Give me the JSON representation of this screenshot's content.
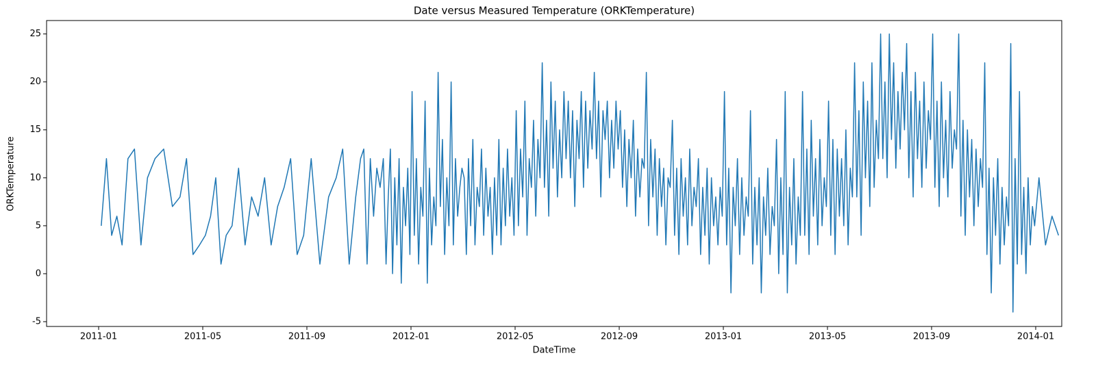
{
  "chart_data": {
    "type": "line",
    "title": "Date versus Measured Temperature (ORKTemperature)",
    "x_label": "DateTime",
    "y_label": "ORKTemperature",
    "xlim": [
      "2010-11",
      "2014-02"
    ],
    "xticks": [
      "2011-01",
      "2011-05",
      "2011-09",
      "2012-01",
      "2012-05",
      "2012-09",
      "2013-01",
      "2013-05",
      "2013-09",
      "2014-01"
    ],
    "ylim": [
      -5.5,
      26.4
    ],
    "yticks": [
      -5,
      0,
      5,
      10,
      15,
      20,
      25
    ],
    "grid": false,
    "series": [
      {
        "name": "ORKTemperature",
        "color": "#1f77b4",
        "x": [
          "2011-01",
          "2011-01",
          "2011-01",
          "2011-01",
          "2011-01",
          "2011-02",
          "2011-02",
          "2011-02",
          "2011-02",
          "2011-03",
          "2011-03",
          "2011-03",
          "2011-04",
          "2011-04",
          "2011-04",
          "2011-04",
          "2011-05",
          "2011-05",
          "2011-05",
          "2011-05",
          "2011-05",
          "2011-06",
          "2011-06",
          "2011-06",
          "2011-06",
          "2011-07",
          "2011-07",
          "2011-07",
          "2011-07",
          "2011-08",
          "2011-08",
          "2011-08",
          "2011-08",
          "2011-09",
          "2011-09",
          "2011-09",
          "2011-10",
          "2011-10",
          "2011-10",
          "2011-10",
          "2011-11",
          "2011-11",
          "2011-11",
          "2011-11",
          "2011-11",
          "2011-11",
          "2011-11",
          "2011-11",
          "2011-12",
          "2011-12",
          "2011-12",
          "2011-12",
          "2011-12",
          "2011-12",
          "2011-12",
          "2011-12",
          "2011-12",
          "2011-12",
          "2011-12",
          "2011-12",
          "2012-01",
          "2012-01",
          "2012-01",
          "2012-01",
          "2012-01",
          "2012-01",
          "2012-01",
          "2012-01",
          "2012-01",
          "2012-01",
          "2012-01",
          "2012-01",
          "2012-02",
          "2012-02",
          "2012-02",
          "2012-02",
          "2012-02",
          "2012-02",
          "2012-02",
          "2012-02",
          "2012-02",
          "2012-02",
          "2012-02",
          "2012-02",
          "2012-03",
          "2012-03",
          "2012-03",
          "2012-03",
          "2012-03",
          "2012-03",
          "2012-03",
          "2012-03",
          "2012-03",
          "2012-03",
          "2012-03",
          "2012-03",
          "2012-04",
          "2012-04",
          "2012-04",
          "2012-04",
          "2012-04",
          "2012-04",
          "2012-04",
          "2012-04",
          "2012-04",
          "2012-04",
          "2012-04",
          "2012-04",
          "2012-05",
          "2012-05",
          "2012-05",
          "2012-05",
          "2012-05",
          "2012-05",
          "2012-05",
          "2012-05",
          "2012-05",
          "2012-05",
          "2012-05",
          "2012-05",
          "2012-06",
          "2012-06",
          "2012-06",
          "2012-06",
          "2012-06",
          "2012-06",
          "2012-06",
          "2012-06",
          "2012-06",
          "2012-06",
          "2012-06",
          "2012-06",
          "2012-07",
          "2012-07",
          "2012-07",
          "2012-07",
          "2012-07",
          "2012-07",
          "2012-07",
          "2012-07",
          "2012-07",
          "2012-07",
          "2012-07",
          "2012-07",
          "2012-08",
          "2012-08",
          "2012-08",
          "2012-08",
          "2012-08",
          "2012-08",
          "2012-08",
          "2012-08",
          "2012-08",
          "2012-08",
          "2012-08",
          "2012-08",
          "2012-09",
          "2012-09",
          "2012-09",
          "2012-09",
          "2012-09",
          "2012-09",
          "2012-09",
          "2012-09",
          "2012-09",
          "2012-09",
          "2012-09",
          "2012-09",
          "2012-10",
          "2012-10",
          "2012-10",
          "2012-10",
          "2012-10",
          "2012-10",
          "2012-10",
          "2012-10",
          "2012-10",
          "2012-10",
          "2012-10",
          "2012-10",
          "2012-11",
          "2012-11",
          "2012-11",
          "2012-11",
          "2012-11",
          "2012-11",
          "2012-11",
          "2012-11",
          "2012-11",
          "2012-11",
          "2012-11",
          "2012-11",
          "2012-12",
          "2012-12",
          "2012-12",
          "2012-12",
          "2012-12",
          "2012-12",
          "2012-12",
          "2012-12",
          "2012-12",
          "2012-12",
          "2012-12",
          "2012-12",
          "2013-01",
          "2013-01",
          "2013-01",
          "2013-01",
          "2013-01",
          "2013-01",
          "2013-01",
          "2013-01",
          "2013-01",
          "2013-01",
          "2013-01",
          "2013-01",
          "2013-02",
          "2013-02",
          "2013-02",
          "2013-02",
          "2013-02",
          "2013-02",
          "2013-02",
          "2013-02",
          "2013-02",
          "2013-02",
          "2013-02",
          "2013-02",
          "2013-03",
          "2013-03",
          "2013-03",
          "2013-03",
          "2013-03",
          "2013-03",
          "2013-03",
          "2013-03",
          "2013-03",
          "2013-03",
          "2013-03",
          "2013-03",
          "2013-04",
          "2013-04",
          "2013-04",
          "2013-04",
          "2013-04",
          "2013-04",
          "2013-04",
          "2013-04",
          "2013-04",
          "2013-04",
          "2013-04",
          "2013-04",
          "2013-05",
          "2013-05",
          "2013-05",
          "2013-05",
          "2013-05",
          "2013-05",
          "2013-05",
          "2013-05",
          "2013-05",
          "2013-05",
          "2013-05",
          "2013-05",
          "2013-06",
          "2013-06",
          "2013-06",
          "2013-06",
          "2013-06",
          "2013-06",
          "2013-06",
          "2013-06",
          "2013-06",
          "2013-06",
          "2013-06",
          "2013-06",
          "2013-07",
          "2013-07",
          "2013-07",
          "2013-07",
          "2013-07",
          "2013-07",
          "2013-07",
          "2013-07",
          "2013-07",
          "2013-07",
          "2013-07",
          "2013-07",
          "2013-08",
          "2013-08",
          "2013-08",
          "2013-08",
          "2013-08",
          "2013-08",
          "2013-08",
          "2013-08",
          "2013-08",
          "2013-08",
          "2013-08",
          "2013-08",
          "2013-09",
          "2013-09",
          "2013-09",
          "2013-09",
          "2013-09",
          "2013-09",
          "2013-09",
          "2013-09",
          "2013-09",
          "2013-09",
          "2013-09",
          "2013-09",
          "2013-10",
          "2013-10",
          "2013-10",
          "2013-10",
          "2013-10",
          "2013-10",
          "2013-10",
          "2013-10",
          "2013-10",
          "2013-10",
          "2013-10",
          "2013-10",
          "2013-11",
          "2013-11",
          "2013-11",
          "2013-11",
          "2013-11",
          "2013-11",
          "2013-11",
          "2013-11",
          "2013-11",
          "2013-11",
          "2013-11",
          "2013-11",
          "2013-12",
          "2013-12",
          "2013-12",
          "2013-12",
          "2013-12",
          "2013-12",
          "2013-12",
          "2013-12",
          "2013-12",
          "2013-12",
          "2013-12",
          "2013-12",
          "2014-01",
          "2014-01",
          "2014-01",
          "2014-01"
        ],
        "values": [
          5,
          12,
          4,
          6,
          3,
          12,
          13,
          3,
          10,
          12,
          13,
          7,
          8,
          12,
          2,
          3,
          4,
          6,
          10,
          1,
          4,
          5,
          11,
          3,
          8,
          6,
          10,
          3,
          7,
          9,
          12,
          2,
          4,
          12,
          1,
          8,
          10,
          13,
          1,
          8,
          12,
          13,
          1,
          12,
          6,
          11,
          9,
          12,
          1,
          8,
          13,
          0,
          10,
          3,
          12,
          -1,
          9,
          5,
          11,
          2,
          19,
          4,
          12,
          1,
          9,
          6,
          18,
          -1,
          11,
          3,
          8,
          5,
          21,
          7,
          14,
          2,
          10,
          5,
          20,
          3,
          12,
          6,
          9,
          11,
          10,
          2,
          12,
          5,
          14,
          3,
          9,
          7,
          13,
          4,
          11,
          6,
          9,
          2,
          10,
          4,
          14,
          3,
          11,
          5,
          13,
          6,
          10,
          4,
          17,
          5,
          13,
          8,
          18,
          4,
          12,
          9,
          16,
          6,
          14,
          10,
          22,
          9,
          16,
          6,
          20,
          11,
          18,
          8,
          15,
          10,
          19,
          12,
          18,
          10,
          17,
          7,
          16,
          12,
          19,
          9,
          18,
          11,
          17,
          13,
          21,
          12,
          18,
          8,
          17,
          14,
          18,
          10,
          16,
          11,
          18,
          13,
          17,
          9,
          15,
          7,
          14,
          10,
          16,
          6,
          13,
          8,
          12,
          11,
          21,
          5,
          14,
          8,
          13,
          4,
          12,
          7,
          11,
          3,
          10,
          9,
          16,
          4,
          11,
          2,
          12,
          6,
          10,
          3,
          13,
          5,
          9,
          7,
          12,
          2,
          9,
          4,
          11,
          1,
          10,
          5,
          8,
          3,
          9,
          6,
          19,
          3,
          11,
          -2,
          9,
          5,
          12,
          2,
          10,
          4,
          8,
          6,
          17,
          1,
          9,
          3,
          10,
          -2,
          8,
          4,
          11,
          2,
          7,
          5,
          14,
          0,
          10,
          2,
          19,
          -2,
          9,
          3,
          12,
          1,
          8,
          4,
          19,
          4,
          13,
          2,
          16,
          6,
          12,
          3,
          14,
          5,
          10,
          7,
          18,
          4,
          14,
          2,
          13,
          6,
          12,
          5,
          15,
          3,
          11,
          8,
          22,
          8,
          17,
          4,
          20,
          10,
          18,
          7,
          22,
          9,
          16,
          12,
          25,
          12,
          20,
          10,
          25,
          14,
          22,
          11,
          19,
          13,
          21,
          15,
          24,
          10,
          19,
          8,
          21,
          12,
          18,
          9,
          20,
          11,
          17,
          14,
          25,
          9,
          18,
          7,
          20,
          10,
          16,
          8,
          19,
          11,
          15,
          13,
          25,
          6,
          16,
          4,
          15,
          8,
          14,
          5,
          13,
          7,
          12,
          9,
          22,
          2,
          11,
          -2,
          10,
          4,
          12,
          1,
          9,
          3,
          8,
          5,
          24,
          -4,
          12,
          1,
          19,
          2,
          9,
          0,
          10,
          3,
          7,
          5,
          10,
          3,
          6,
          4
        ]
      }
    ]
  }
}
